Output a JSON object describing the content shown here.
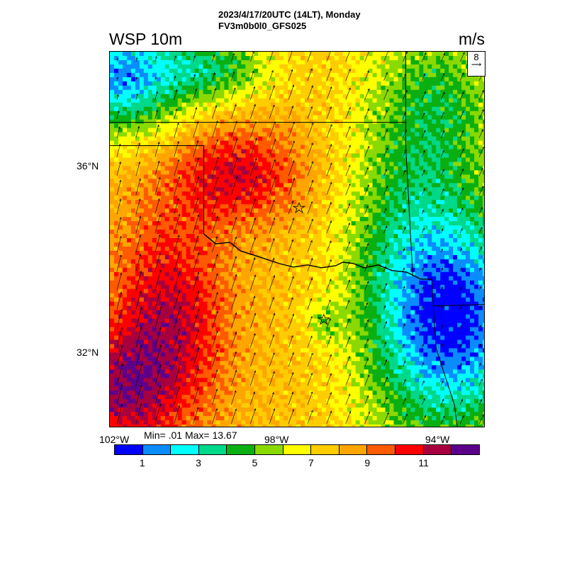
{
  "title_line1": "2023/4/17/20UTC (14LT), Monday",
  "title_line2": "FV3m0b0l0_GFS025",
  "variable": "WSP 10m",
  "units": "m/s",
  "reference_vector": {
    "label": "8",
    "icon": "arrow-right-icon"
  },
  "lat_labels": [
    "36°N",
    "32°N"
  ],
  "lon_labels": [
    "102°W",
    "98°W",
    "94°W"
  ],
  "stats": "Min= .01 Max= 13.67",
  "colorbar": {
    "colors": [
      "#0000ff",
      "#0a8cff",
      "#00ffff",
      "#00d88a",
      "#0aaf12",
      "#8ad900",
      "#ffff00",
      "#ffcc00",
      "#ffa500",
      "#ff5a00",
      "#ff0000",
      "#a8003e",
      "#5c008c"
    ],
    "labels": [
      "1",
      "3",
      "5",
      "7",
      "9",
      "11"
    ]
  },
  "markers": [
    "star-icon",
    "star-icon"
  ]
}
